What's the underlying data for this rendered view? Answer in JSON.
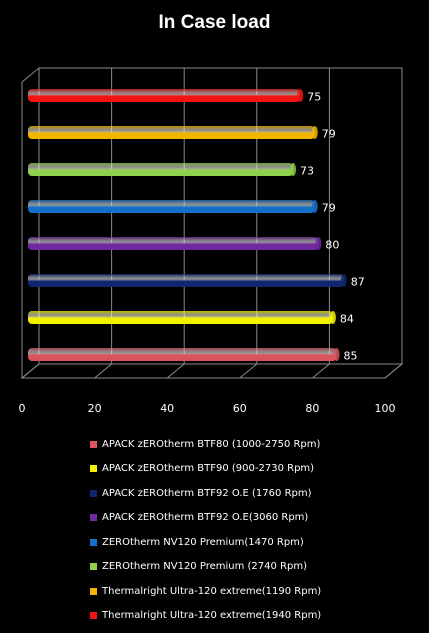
{
  "chart_data": {
    "type": "bar",
    "orientation": "horizontal",
    "title": "In Case load",
    "xlim": [
      0,
      100
    ],
    "xticks": [
      0,
      20,
      40,
      60,
      80,
      100
    ],
    "grid": true,
    "legend_position": "bottom",
    "series": [
      {
        "name": "APACK zEROtherm BTF80 (1000-2750 Rpm)",
        "value": 85,
        "color": "#d9545c"
      },
      {
        "name": "APACK zEROtherm BTF90 (900-2730 Rpm)",
        "value": 84,
        "color": "#f2f200"
      },
      {
        "name": "APACK zEROtherm BTF92 O.E (1760 Rpm)",
        "value": 87,
        "color": "#10266e"
      },
      {
        "name": "APACK zEROtherm BTF92 O.E(3060 Rpm)",
        "value": 80,
        "color": "#6e2a9e"
      },
      {
        "name": "ZEROtherm NV120 Premium(1470 Rpm)",
        "value": 79,
        "color": "#1470c8"
      },
      {
        "name": "ZEROtherm NV120 Premium (2740 Rpm)",
        "value": 73,
        "color": "#8ed14a"
      },
      {
        "name": "Thermalright Ultra-120 extreme(1190 Rpm)",
        "value": 79,
        "color": "#f2b600"
      },
      {
        "name": "Thermalright Ultra-120 extreme(1940 Rpm)",
        "value": 75,
        "color": "#f21414"
      }
    ]
  }
}
